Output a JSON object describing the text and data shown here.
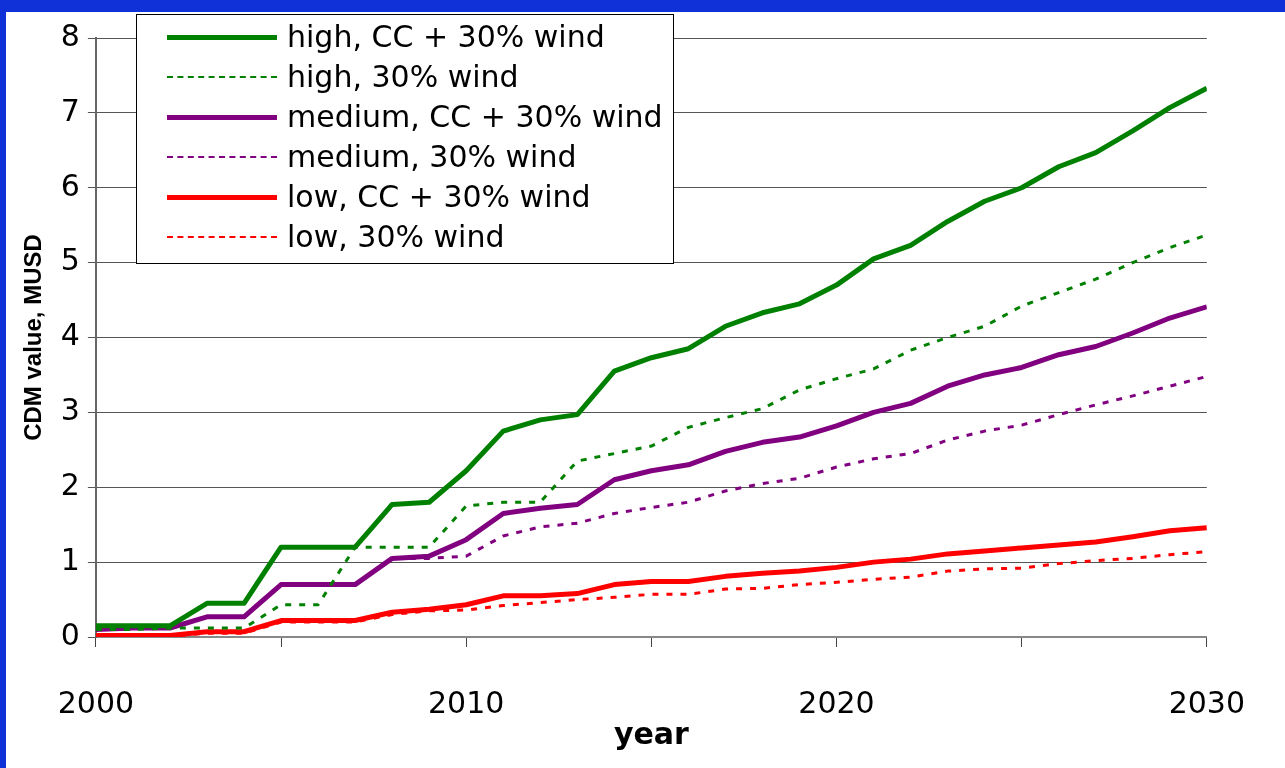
{
  "chart_data": {
    "type": "line",
    "xlabel": "year",
    "ylabel": "CDM value, MUSD",
    "x": [
      2000,
      2001,
      2002,
      2003,
      2004,
      2005,
      2006,
      2007,
      2008,
      2009,
      2010,
      2011,
      2012,
      2013,
      2014,
      2015,
      2016,
      2017,
      2018,
      2019,
      2020,
      2021,
      2022,
      2023,
      2024,
      2025,
      2026,
      2027,
      2028,
      2029,
      2030
    ],
    "xlim": [
      2000,
      2030
    ],
    "xticks": [
      2000,
      {
        "value": 2005,
        "label": null
      },
      2010,
      {
        "value": 2015,
        "label": null
      },
      2020,
      {
        "value": 2025,
        "label": null
      },
      2030
    ],
    "ylim": [
      0,
      8
    ],
    "yticks": [
      0,
      1,
      2,
      3,
      4,
      5,
      6,
      7,
      8
    ],
    "grid": "y",
    "legend": "top left",
    "marker": "none",
    "series": [
      {
        "name": "high, CC + 30% wind",
        "color": "#008000",
        "line_style": "solid",
        "values": [
          0.15,
          0.15,
          0.15,
          0.45,
          0.45,
          1.2,
          1.2,
          1.2,
          1.77,
          1.8,
          2.22,
          2.75,
          2.9,
          2.97,
          3.55,
          3.73,
          3.85,
          4.15,
          4.33,
          4.45,
          4.7,
          5.05,
          5.23,
          5.55,
          5.82,
          6.0,
          6.28,
          6.47,
          6.76,
          7.07,
          7.33
        ]
      },
      {
        "name": "high, 30% wind",
        "color": "#008000",
        "line_style": "dashed",
        "values": [
          0.1,
          0.1,
          0.12,
          0.12,
          0.12,
          0.43,
          0.43,
          1.2,
          1.2,
          1.2,
          1.75,
          1.8,
          1.8,
          2.35,
          2.45,
          2.55,
          2.8,
          2.93,
          3.05,
          3.3,
          3.45,
          3.58,
          3.83,
          4.0,
          4.15,
          4.42,
          4.6,
          4.78,
          5.0,
          5.2,
          5.37
        ]
      },
      {
        "name": "medium, CC + 30% wind",
        "color": "#800080",
        "line_style": "solid",
        "values": [
          0.1,
          0.12,
          0.12,
          0.27,
          0.27,
          0.7,
          0.7,
          0.7,
          1.05,
          1.08,
          1.3,
          1.65,
          1.72,
          1.77,
          2.1,
          2.22,
          2.3,
          2.48,
          2.6,
          2.67,
          2.82,
          3.0,
          3.12,
          3.35,
          3.5,
          3.6,
          3.77,
          3.88,
          4.06,
          4.26,
          4.41
        ]
      },
      {
        "name": "medium, 30% wind",
        "color": "#800080",
        "line_style": "dashed",
        "values": [
          0.1,
          0.12,
          0.12,
          0.27,
          0.27,
          0.7,
          0.7,
          0.7,
          1.05,
          1.05,
          1.08,
          1.35,
          1.47,
          1.52,
          1.65,
          1.73,
          1.8,
          1.95,
          2.05,
          2.12,
          2.27,
          2.38,
          2.45,
          2.63,
          2.75,
          2.83,
          2.97,
          3.1,
          3.22,
          3.35,
          3.48
        ]
      },
      {
        "name": "low, CC + 30% wind",
        "color": "#ff0000",
        "line_style": "solid",
        "values": [
          0.02,
          0.02,
          0.02,
          0.07,
          0.07,
          0.22,
          0.22,
          0.22,
          0.33,
          0.37,
          0.43,
          0.55,
          0.55,
          0.58,
          0.7,
          0.74,
          0.74,
          0.81,
          0.85,
          0.88,
          0.93,
          1.0,
          1.04,
          1.11,
          1.15,
          1.19,
          1.23,
          1.27,
          1.34,
          1.42,
          1.46
        ]
      },
      {
        "name": "low, 30% wind",
        "color": "#ff0000",
        "line_style": "dashed",
        "values": [
          0.01,
          0.01,
          0.01,
          0.05,
          0.05,
          0.2,
          0.2,
          0.2,
          0.3,
          0.35,
          0.36,
          0.42,
          0.46,
          0.5,
          0.53,
          0.57,
          0.57,
          0.64,
          0.65,
          0.7,
          0.73,
          0.77,
          0.8,
          0.88,
          0.91,
          0.92,
          0.98,
          1.02,
          1.05,
          1.1,
          1.14
        ]
      }
    ]
  }
}
